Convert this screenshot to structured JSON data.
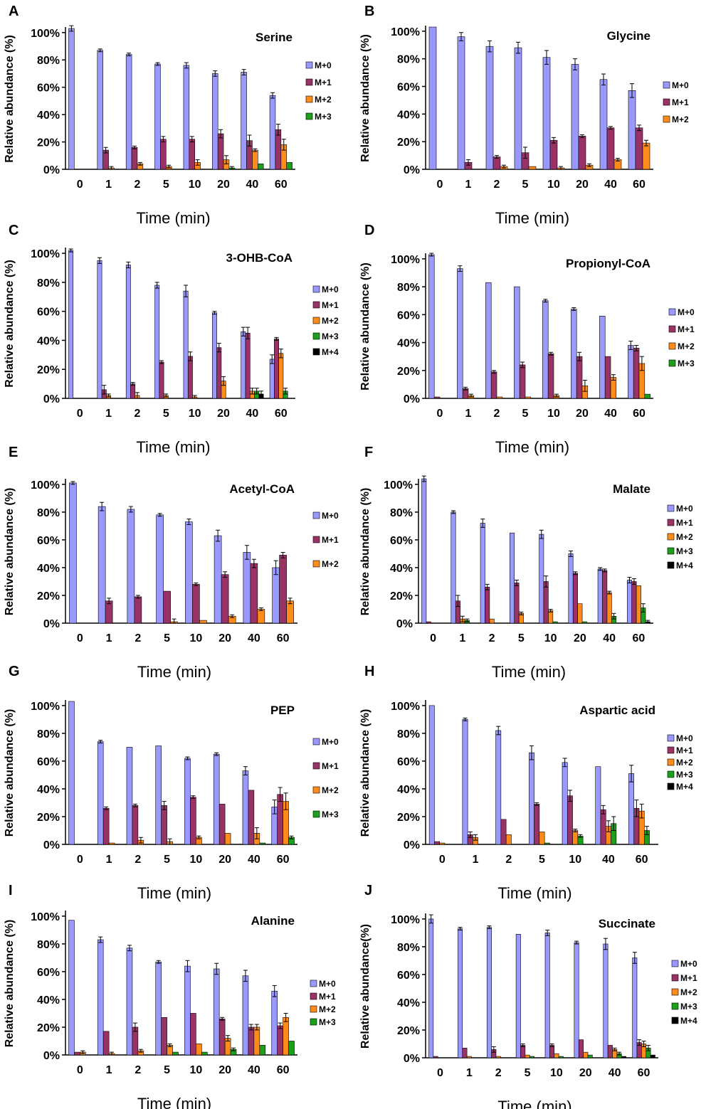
{
  "colors": {
    "M+0": "#9999ff",
    "M+1": "#993366",
    "M+2": "#ff8c1a",
    "M+3": "#1aa01a",
    "M+4": "#000000"
  },
  "chart_data": [
    {
      "panel": "A",
      "type": "bar",
      "title": "Serine",
      "xlabel": "Time (min)",
      "ylabel": "Relative abundance (%)",
      "ylim": [
        0,
        100
      ],
      "yticks": [
        "0%",
        "20%",
        "40%",
        "60%",
        "80%",
        "100%"
      ],
      "categories": [
        "0",
        "1",
        "2",
        "5",
        "10",
        "20",
        "40",
        "60"
      ],
      "series": [
        {
          "name": "M+0",
          "values": [
            103,
            87,
            84,
            77,
            76,
            70,
            71,
            54
          ],
          "errors": [
            2,
            1,
            1,
            1,
            2,
            2,
            2,
            2
          ]
        },
        {
          "name": "M+1",
          "values": [
            0,
            14,
            16,
            22,
            22,
            26,
            21,
            29
          ],
          "errors": [
            0,
            2,
            1,
            2,
            2,
            3,
            4,
            4
          ]
        },
        {
          "name": "M+2",
          "values": [
            0,
            1,
            4,
            2,
            5,
            7,
            14,
            18
          ],
          "errors": [
            0,
            1,
            1,
            1,
            2,
            3,
            1,
            4
          ]
        },
        {
          "name": "M+3",
          "values": [
            0,
            0,
            0,
            0,
            0,
            1,
            4,
            5
          ],
          "errors": [
            0,
            0,
            0,
            0,
            0,
            1,
            0,
            0
          ]
        }
      ]
    },
    {
      "panel": "B",
      "type": "bar",
      "title": "Glycine",
      "xlabel": "Time (min)",
      "ylabel": "Relative abundance (%)",
      "ylim": [
        0,
        100
      ],
      "yticks": [
        "0%",
        "20%",
        "40%",
        "60%",
        "80%",
        "100%"
      ],
      "categories": [
        "0",
        "1",
        "2",
        "5",
        "10",
        "20",
        "40",
        "60"
      ],
      "series": [
        {
          "name": "M+0",
          "values": [
            103,
            96,
            89,
            88,
            81,
            76,
            65,
            57
          ],
          "errors": [
            0,
            3,
            4,
            4,
            5,
            4,
            4,
            5
          ]
        },
        {
          "name": "M+1",
          "values": [
            0,
            5,
            9,
            12,
            21,
            24,
            30,
            30
          ],
          "errors": [
            0,
            2,
            1,
            4,
            2,
            1,
            1,
            2
          ]
        },
        {
          "name": "M+2",
          "values": [
            0,
            0,
            2,
            2,
            1,
            3,
            7,
            19
          ],
          "errors": [
            0,
            0,
            1,
            0,
            1,
            1,
            1,
            2
          ]
        }
      ]
    },
    {
      "panel": "C",
      "type": "bar",
      "title": "3-OHB-CoA",
      "xlabel": "Time (min)",
      "ylabel": "Relative abundance (%)",
      "ylim": [
        0,
        100
      ],
      "yticks": [
        "0%",
        "20%",
        "40%",
        "60%",
        "80%",
        "100%"
      ],
      "categories": [
        "0",
        "1",
        "2",
        "5",
        "10",
        "20",
        "40",
        "60"
      ],
      "series": [
        {
          "name": "M+0",
          "values": [
            102,
            95,
            92,
            78,
            74,
            59,
            46,
            27
          ],
          "errors": [
            1,
            2,
            2,
            2,
            4,
            1,
            3,
            3
          ]
        },
        {
          "name": "M+1",
          "values": [
            0,
            6,
            10,
            25,
            29,
            35,
            45,
            41
          ],
          "errors": [
            0,
            3,
            1,
            1,
            3,
            3,
            4,
            1
          ]
        },
        {
          "name": "M+2",
          "values": [
            0,
            2,
            2,
            2,
            1,
            12,
            5,
            31
          ],
          "errors": [
            0,
            1,
            2,
            1,
            1,
            3,
            2,
            3
          ]
        },
        {
          "name": "M+3",
          "values": [
            0,
            0,
            0,
            0,
            0,
            0,
            5,
            5
          ],
          "errors": [
            0,
            0,
            0,
            0,
            0,
            0,
            2,
            2
          ]
        },
        {
          "name": "M+4",
          "values": [
            0,
            0,
            0,
            0,
            0,
            0,
            3,
            0
          ],
          "errors": [
            0,
            0,
            0,
            0,
            0,
            0,
            2,
            0
          ]
        }
      ]
    },
    {
      "panel": "D",
      "type": "bar",
      "title": "Propionyl-CoA",
      "xlabel": "Time (min)",
      "ylabel": "Relative abundance (%)",
      "ylim": [
        0,
        100
      ],
      "yticks": [
        "0%",
        "20%",
        "40%",
        "60%",
        "80%",
        "100%"
      ],
      "categories": [
        "0",
        "1",
        "2",
        "5",
        "10",
        "20",
        "40",
        "60"
      ],
      "series": [
        {
          "name": "M+0",
          "values": [
            103,
            93,
            83,
            80,
            70,
            64,
            59,
            38
          ],
          "errors": [
            1,
            2,
            0,
            0,
            1,
            1,
            0,
            3
          ]
        },
        {
          "name": "M+1",
          "values": [
            1,
            7,
            19,
            24,
            32,
            30,
            30,
            36
          ],
          "errors": [
            0,
            1,
            1,
            2,
            1,
            3,
            0,
            2
          ]
        },
        {
          "name": "M+2",
          "values": [
            0,
            2,
            1,
            1,
            2,
            9,
            15,
            25
          ],
          "errors": [
            0,
            1,
            0,
            0,
            1,
            4,
            2,
            5
          ]
        },
        {
          "name": "M+3",
          "values": [
            0,
            0,
            0,
            0,
            0,
            0,
            0,
            3
          ],
          "errors": [
            0,
            0,
            0,
            0,
            0,
            0,
            0,
            0
          ]
        }
      ]
    },
    {
      "panel": "E",
      "type": "bar",
      "title": "Acetyl-CoA",
      "xlabel": "Time (min)",
      "ylabel": "Relative abundance (%)",
      "ylim": [
        0,
        100
      ],
      "yticks": [
        "0%",
        "20%",
        "40%",
        "60%",
        "80%",
        "100%"
      ],
      "categories": [
        "0",
        "1",
        "2",
        "5",
        "10",
        "20",
        "40",
        "60"
      ],
      "series": [
        {
          "name": "M+0",
          "values": [
            101,
            84,
            82,
            78,
            73,
            63,
            51,
            40
          ],
          "errors": [
            1,
            3,
            2,
            1,
            2,
            4,
            5,
            5
          ]
        },
        {
          "name": "M+1",
          "values": [
            0,
            16,
            19,
            23,
            28,
            35,
            43,
            49
          ],
          "errors": [
            0,
            2,
            1,
            0,
            1,
            2,
            3,
            2
          ]
        },
        {
          "name": "M+2",
          "values": [
            0,
            0,
            0,
            1,
            2,
            5,
            10,
            16
          ],
          "errors": [
            0,
            0,
            0,
            2,
            0,
            1,
            1,
            2
          ]
        }
      ]
    },
    {
      "panel": "F",
      "type": "bar",
      "title": "Malate",
      "xlabel": "Time (min)",
      "ylabel": "Relative abundance (%)",
      "ylim": [
        0,
        100
      ],
      "yticks": [
        "0%",
        "20%",
        "40%",
        "60%",
        "80%",
        "100%"
      ],
      "categories": [
        "0",
        "1",
        "2",
        "5",
        "10",
        "20",
        "40",
        "60"
      ],
      "series": [
        {
          "name": "M+0",
          "values": [
            104,
            80,
            72,
            65,
            64,
            50,
            39,
            31
          ],
          "errors": [
            2,
            1,
            3,
            0,
            3,
            2,
            1,
            2
          ]
        },
        {
          "name": "M+1",
          "values": [
            1,
            16,
            26,
            29,
            30,
            36,
            38,
            30
          ],
          "errors": [
            0,
            4,
            2,
            2,
            4,
            1,
            1,
            2
          ]
        },
        {
          "name": "M+2",
          "values": [
            0,
            3,
            3,
            7,
            9,
            14,
            22,
            27
          ],
          "errors": [
            0,
            2,
            0,
            1,
            1,
            0,
            1,
            0
          ]
        },
        {
          "name": "M+3",
          "values": [
            0,
            2,
            0,
            0,
            1,
            1,
            5,
            11
          ],
          "errors": [
            0,
            1,
            0,
            0,
            0,
            0,
            2,
            3
          ]
        },
        {
          "name": "M+4",
          "values": [
            0,
            0,
            0,
            0,
            0,
            0,
            0,
            1
          ],
          "errors": [
            0,
            0,
            0,
            0,
            0,
            0,
            0,
            1
          ]
        }
      ]
    },
    {
      "panel": "G",
      "type": "bar",
      "title": "PEP",
      "xlabel": "Time (min)",
      "ylabel": "Relative abundance (%)",
      "ylim": [
        0,
        100
      ],
      "yticks": [
        "0%",
        "20%",
        "40%",
        "60%",
        "80%",
        "100%"
      ],
      "categories": [
        "0",
        "1",
        "2",
        "5",
        "10",
        "20",
        "40",
        "60"
      ],
      "series": [
        {
          "name": "M+0",
          "values": [
            103,
            74,
            70,
            71,
            62,
            65,
            53,
            27
          ],
          "errors": [
            0,
            1,
            0,
            0,
            1,
            1,
            3,
            5
          ]
        },
        {
          "name": "M+1",
          "values": [
            0,
            26,
            28,
            28,
            34,
            29,
            39,
            36
          ],
          "errors": [
            0,
            1,
            1,
            3,
            1,
            0,
            0,
            5
          ]
        },
        {
          "name": "M+2",
          "values": [
            0,
            1,
            3,
            2,
            5,
            8,
            8,
            31
          ],
          "errors": [
            0,
            0,
            2,
            2,
            1,
            0,
            4,
            6
          ]
        },
        {
          "name": "M+3",
          "values": [
            0,
            0,
            0,
            0,
            0,
            0,
            1,
            5
          ],
          "errors": [
            0,
            0,
            0,
            0,
            0,
            0,
            0,
            1
          ]
        }
      ]
    },
    {
      "panel": "H",
      "type": "bar",
      "title": "Aspartic acid",
      "xlabel": "Time (min)",
      "ylabel": "Relative abundance (%)",
      "ylim": [
        0,
        100
      ],
      "yticks": [
        "0%",
        "20%",
        "40%",
        "60%",
        "80%",
        "100%"
      ],
      "categories": [
        "0",
        "1",
        "2",
        "5",
        "10",
        "40",
        "60"
      ],
      "series": [
        {
          "name": "M+0",
          "values": [
            100,
            90,
            82,
            66,
            59,
            56,
            51
          ],
          "errors": [
            0,
            1,
            3,
            5,
            3,
            0,
            6
          ]
        },
        {
          "name": "M+1",
          "values": [
            2,
            7,
            18,
            29,
            35,
            25,
            26
          ],
          "errors": [
            0,
            2,
            0,
            1,
            4,
            3,
            6
          ]
        },
        {
          "name": "M+2",
          "values": [
            1,
            5,
            7,
            9,
            10,
            13,
            24
          ],
          "errors": [
            0,
            2,
            0,
            0,
            1,
            4,
            5
          ]
        },
        {
          "name": "M+3",
          "values": [
            0,
            0,
            0,
            1,
            6,
            15,
            10
          ],
          "errors": [
            0,
            0,
            0,
            0,
            1,
            5,
            3
          ]
        },
        {
          "name": "M+4",
          "values": [
            0,
            0,
            0,
            0,
            0,
            0,
            0
          ],
          "errors": [
            0,
            0,
            0,
            0,
            0,
            0,
            0
          ]
        }
      ]
    },
    {
      "panel": "I",
      "type": "bar",
      "title": "Alanine",
      "xlabel": "Time (min)",
      "ylabel": "Relative abundance (%)",
      "ylim": [
        0,
        100
      ],
      "yticks": [
        "0%",
        "20%",
        "40%",
        "60%",
        "80%",
        "100%"
      ],
      "categories": [
        "0",
        "1",
        "2",
        "5",
        "10",
        "20",
        "40",
        "60"
      ],
      "series": [
        {
          "name": "M+0",
          "values": [
            97,
            83,
            77,
            67,
            64,
            62,
            57,
            46
          ],
          "errors": [
            0,
            2,
            2,
            1,
            4,
            4,
            4,
            4
          ]
        },
        {
          "name": "M+1",
          "values": [
            2,
            17,
            20,
            27,
            30,
            26,
            20,
            21
          ],
          "errors": [
            0,
            0,
            3,
            0,
            0,
            1,
            2,
            2
          ]
        },
        {
          "name": "M+2",
          "values": [
            2,
            1,
            3,
            7,
            8,
            12,
            20,
            27
          ],
          "errors": [
            1,
            1,
            1,
            1,
            0,
            2,
            2,
            3
          ]
        },
        {
          "name": "M+3",
          "values": [
            0,
            0,
            0,
            2,
            2,
            4,
            7,
            10
          ],
          "errors": [
            0,
            0,
            0,
            0,
            0,
            1,
            0,
            0
          ]
        }
      ]
    },
    {
      "panel": "J",
      "type": "bar",
      "title": "Succinate",
      "xlabel": "Time (min)",
      "ylabel": "Relative abundance(%)",
      "ylim": [
        0,
        100
      ],
      "yticks": [
        "0%",
        "20%",
        "40%",
        "60%",
        "80%",
        "100%"
      ],
      "categories": [
        "0",
        "1",
        "2",
        "5",
        "10",
        "20",
        "40",
        "60"
      ],
      "series": [
        {
          "name": "M+0",
          "values": [
            100,
            93,
            94,
            89,
            90,
            83,
            82,
            72
          ],
          "errors": [
            3,
            1,
            1,
            0,
            2,
            1,
            4,
            4
          ]
        },
        {
          "name": "M+1",
          "values": [
            1,
            7,
            6,
            9,
            9,
            13,
            9,
            11
          ],
          "errors": [
            0,
            0,
            2,
            1,
            1,
            0,
            0,
            2
          ]
        },
        {
          "name": "M+2",
          "values": [
            0,
            1,
            1,
            2,
            3,
            4,
            6,
            10
          ],
          "errors": [
            0,
            0,
            0,
            0,
            0,
            0,
            1,
            2
          ]
        },
        {
          "name": "M+3",
          "values": [
            0,
            0,
            0,
            1,
            1,
            2,
            3,
            7
          ],
          "errors": [
            0,
            0,
            0,
            0,
            0,
            0,
            1,
            2
          ]
        },
        {
          "name": "M+4",
          "values": [
            0,
            0,
            0,
            0,
            0,
            0,
            1,
            2
          ],
          "errors": [
            0,
            0,
            0,
            0,
            0,
            0,
            0,
            0
          ]
        }
      ]
    }
  ]
}
